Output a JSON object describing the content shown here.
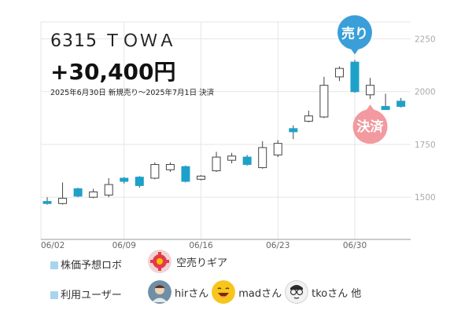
{
  "header": {
    "stock": "6315 ＴＯＷＡ",
    "profit": "+30,400円",
    "period": "2025年6月30日 新規売り～2025年7月1日 決済"
  },
  "markers": {
    "sell": {
      "label": "売り",
      "color": "#3a9fd8"
    },
    "settle": {
      "label": "決済",
      "color": "#f29a9f"
    }
  },
  "chart_data": {
    "type": "candlestick",
    "x_tick_labels": [
      "06/02",
      "06/09",
      "06/16",
      "06/23",
      "06/30"
    ],
    "y_tick_labels": [
      1500,
      1750,
      2000,
      2250
    ],
    "ylim": [
      1300,
      2330
    ],
    "grid": true,
    "colors": {
      "up": "#ffffff",
      "down": "#1ea1c9",
      "edge": "#444444"
    },
    "candles": [
      {
        "o": 1480,
        "h": 1500,
        "l": 1465,
        "c": 1470
      },
      {
        "o": 1470,
        "h": 1570,
        "l": 1465,
        "c": 1495
      },
      {
        "o": 1540,
        "h": 1545,
        "l": 1500,
        "c": 1505
      },
      {
        "o": 1500,
        "h": 1540,
        "l": 1495,
        "c": 1525
      },
      {
        "o": 1510,
        "h": 1590,
        "l": 1500,
        "c": 1560
      },
      {
        "o": 1590,
        "h": 1595,
        "l": 1565,
        "c": 1575
      },
      {
        "o": 1595,
        "h": 1600,
        "l": 1545,
        "c": 1555
      },
      {
        "o": 1590,
        "h": 1665,
        "l": 1585,
        "c": 1655
      },
      {
        "o": 1630,
        "h": 1665,
        "l": 1620,
        "c": 1655
      },
      {
        "o": 1645,
        "h": 1650,
        "l": 1570,
        "c": 1575
      },
      {
        "o": 1585,
        "h": 1605,
        "l": 1580,
        "c": 1600
      },
      {
        "o": 1625,
        "h": 1715,
        "l": 1620,
        "c": 1690
      },
      {
        "o": 1675,
        "h": 1710,
        "l": 1660,
        "c": 1695
      },
      {
        "o": 1690,
        "h": 1700,
        "l": 1650,
        "c": 1655
      },
      {
        "o": 1640,
        "h": 1765,
        "l": 1635,
        "c": 1735
      },
      {
        "o": 1700,
        "h": 1770,
        "l": 1690,
        "c": 1755
      },
      {
        "o": 1825,
        "h": 1840,
        "l": 1775,
        "c": 1810
      },
      {
        "o": 1860,
        "h": 1910,
        "l": 1855,
        "c": 1885
      },
      {
        "o": 1880,
        "h": 2070,
        "l": 1875,
        "c": 2030
      },
      {
        "o": 2070,
        "h": 2120,
        "l": 2050,
        "c": 2110
      },
      {
        "o": 2140,
        "h": 2150,
        "l": 1995,
        "c": 2000
      },
      {
        "o": 1985,
        "h": 2065,
        "l": 1965,
        "c": 2030
      },
      {
        "o": 1930,
        "h": 1990,
        "l": 1915,
        "c": 1915
      },
      {
        "o": 1955,
        "h": 1970,
        "l": 1925,
        "c": 1930
      }
    ],
    "sell_index": 20,
    "settle_index": 21
  },
  "legend": {
    "robot_label": "株価予想ロボ",
    "user_label": "利用ユーザー",
    "tool_name": "空売りギア",
    "users": [
      {
        "name": "hirさん",
        "icon": "person-avatar-icon"
      },
      {
        "name": "madさん",
        "icon": "laughing-face-avatar-icon"
      },
      {
        "name": "tkoさん",
        "icon": "glasses-face-avatar-icon"
      }
    ],
    "others": "他"
  }
}
